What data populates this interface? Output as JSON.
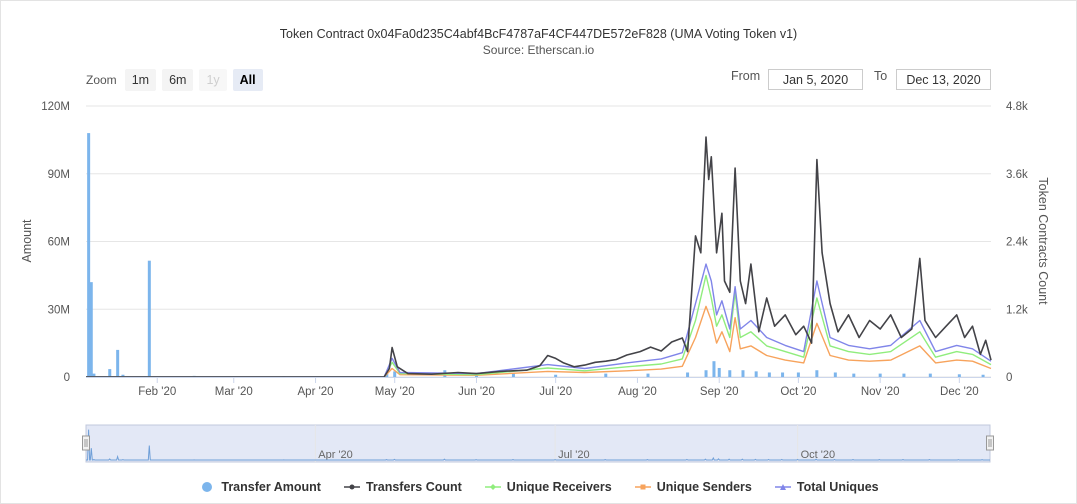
{
  "header": {
    "title": "Token Contract 0x04Fa0d235C4abf4BcF4787aF4CF447DE572eF828 (UMA Voting Token v1)",
    "subtitle": "Source: Etherscan.io"
  },
  "zoom": {
    "label": "Zoom",
    "buttons": [
      {
        "label": "1m",
        "state": "normal"
      },
      {
        "label": "6m",
        "state": "normal"
      },
      {
        "label": "1y",
        "state": "disabled"
      },
      {
        "label": "All",
        "state": "active"
      }
    ]
  },
  "range": {
    "from_label": "From",
    "from_value": "Jan 5, 2020",
    "to_label": "To",
    "to_value": "Dec 13, 2020"
  },
  "chart_data": {
    "type": "line",
    "title": "Token Contract 0x04Fa0d235C4abf4BcF4787aF4CF447DE572eF828 (UMA Voting Token v1)",
    "subtitle": "Source: Etherscan.io",
    "ylabel_left": "Amount",
    "ylabel_right": "Token Contracts Count",
    "x_range": [
      "2020-01-05",
      "2020-12-13"
    ],
    "x_ticks": [
      "Feb '20",
      "Mar '20",
      "Apr '20",
      "May '20",
      "Jun '20",
      "Jul '20",
      "Aug '20",
      "Sep '20",
      "Oct '20",
      "Nov '20",
      "Dec '20"
    ],
    "y_left": {
      "min": 0,
      "max": 120000000,
      "ticks": [
        "0",
        "30M",
        "60M",
        "90M",
        "120M"
      ]
    },
    "y_right": {
      "min": 0,
      "max": 4800,
      "ticks": [
        "0",
        "1.2k",
        "2.4k",
        "3.6k",
        "4.8k"
      ]
    },
    "grid": true,
    "legend_position": "bottom",
    "colors": {
      "transfer_amount": "#7cb5ec",
      "transfers_count": "#434348",
      "unique_receivers": "#90ed7d",
      "unique_senders": "#f7a35c",
      "total_uniques": "#8085e9"
    },
    "series": [
      {
        "name": "Transfer Amount",
        "axis": "left",
        "kind": "column",
        "points": [
          [
            "2020-01-06",
            108000000
          ],
          [
            "2020-01-07",
            42000000
          ],
          [
            "2020-01-08",
            1500000
          ],
          [
            "2020-01-14",
            3500000
          ],
          [
            "2020-01-17",
            12000000
          ],
          [
            "2020-01-19",
            1000000
          ],
          [
            "2020-01-29",
            51500000
          ],
          [
            "2020-02-15",
            500000
          ],
          [
            "2020-03-20",
            400000
          ],
          [
            "2020-04-28",
            1500000
          ],
          [
            "2020-05-01",
            2500000
          ],
          [
            "2020-05-20",
            3000000
          ],
          [
            "2020-06-01",
            1000000
          ],
          [
            "2020-06-15",
            1500000
          ],
          [
            "2020-07-01",
            1000000
          ],
          [
            "2020-07-20",
            1500000
          ],
          [
            "2020-08-05",
            1500000
          ],
          [
            "2020-08-20",
            2000000
          ],
          [
            "2020-08-27",
            3000000
          ],
          [
            "2020-08-30",
            7000000
          ],
          [
            "2020-09-01",
            4000000
          ],
          [
            "2020-09-05",
            3000000
          ],
          [
            "2020-09-10",
            3000000
          ],
          [
            "2020-09-15",
            2500000
          ],
          [
            "2020-09-20",
            2000000
          ],
          [
            "2020-09-25",
            2000000
          ],
          [
            "2020-10-01",
            2000000
          ],
          [
            "2020-10-08",
            3000000
          ],
          [
            "2020-10-15",
            2000000
          ],
          [
            "2020-10-22",
            1500000
          ],
          [
            "2020-11-01",
            1500000
          ],
          [
            "2020-11-10",
            1500000
          ],
          [
            "2020-11-20",
            1500000
          ],
          [
            "2020-12-01",
            1200000
          ],
          [
            "2020-12-10",
            1000000
          ]
        ]
      },
      {
        "name": "Transfers Count",
        "axis": "right",
        "points": [
          [
            "2020-01-05",
            0
          ],
          [
            "2020-04-27",
            0
          ],
          [
            "2020-04-29",
            150
          ],
          [
            "2020-04-30",
            520
          ],
          [
            "2020-05-02",
            180
          ],
          [
            "2020-05-06",
            60
          ],
          [
            "2020-05-15",
            50
          ],
          [
            "2020-05-25",
            80
          ],
          [
            "2020-06-01",
            60
          ],
          [
            "2020-06-10",
            100
          ],
          [
            "2020-06-20",
            120
          ],
          [
            "2020-06-25",
            200
          ],
          [
            "2020-06-28",
            380
          ],
          [
            "2020-07-01",
            330
          ],
          [
            "2020-07-04",
            250
          ],
          [
            "2020-07-08",
            180
          ],
          [
            "2020-07-12",
            210
          ],
          [
            "2020-07-16",
            260
          ],
          [
            "2020-07-20",
            280
          ],
          [
            "2020-07-24",
            310
          ],
          [
            "2020-07-28",
            390
          ],
          [
            "2020-08-02",
            450
          ],
          [
            "2020-08-06",
            530
          ],
          [
            "2020-08-10",
            460
          ],
          [
            "2020-08-14",
            620
          ],
          [
            "2020-08-18",
            690
          ],
          [
            "2020-08-20",
            450
          ],
          [
            "2020-08-23",
            2500
          ],
          [
            "2020-08-25",
            2200
          ],
          [
            "2020-08-27",
            4250
          ],
          [
            "2020-08-28",
            3500
          ],
          [
            "2020-08-29",
            3900
          ],
          [
            "2020-08-31",
            2200
          ],
          [
            "2020-09-02",
            2900
          ],
          [
            "2020-09-03",
            1700
          ],
          [
            "2020-09-05",
            1500
          ],
          [
            "2020-09-07",
            3700
          ],
          [
            "2020-09-09",
            1700
          ],
          [
            "2020-09-11",
            1300
          ],
          [
            "2020-09-13",
            2000
          ],
          [
            "2020-09-16",
            800
          ],
          [
            "2020-09-19",
            1400
          ],
          [
            "2020-09-22",
            900
          ],
          [
            "2020-09-26",
            1100
          ],
          [
            "2020-09-30",
            750
          ],
          [
            "2020-10-03",
            900
          ],
          [
            "2020-10-06",
            600
          ],
          [
            "2020-10-08",
            3850
          ],
          [
            "2020-10-10",
            2200
          ],
          [
            "2020-10-13",
            1300
          ],
          [
            "2020-10-16",
            800
          ],
          [
            "2020-10-20",
            1100
          ],
          [
            "2020-10-24",
            700
          ],
          [
            "2020-10-28",
            1000
          ],
          [
            "2020-11-01",
            850
          ],
          [
            "2020-11-05",
            1100
          ],
          [
            "2020-11-09",
            700
          ],
          [
            "2020-11-13",
            850
          ],
          [
            "2020-11-16",
            2100
          ],
          [
            "2020-11-18",
            1000
          ],
          [
            "2020-11-22",
            700
          ],
          [
            "2020-11-26",
            900
          ],
          [
            "2020-11-30",
            1100
          ],
          [
            "2020-12-03",
            700
          ],
          [
            "2020-12-06",
            900
          ],
          [
            "2020-12-09",
            400
          ],
          [
            "2020-12-11",
            650
          ],
          [
            "2020-12-13",
            300
          ]
        ]
      },
      {
        "name": "Unique Receivers",
        "axis": "right",
        "points": [
          [
            "2020-01-05",
            0
          ],
          [
            "2020-04-27",
            0
          ],
          [
            "2020-04-30",
            260
          ],
          [
            "2020-05-03",
            60
          ],
          [
            "2020-06-01",
            40
          ],
          [
            "2020-06-28",
            160
          ],
          [
            "2020-07-12",
            110
          ],
          [
            "2020-07-28",
            180
          ],
          [
            "2020-08-10",
            230
          ],
          [
            "2020-08-18",
            320
          ],
          [
            "2020-08-23",
            1000
          ],
          [
            "2020-08-27",
            1800
          ],
          [
            "2020-08-29",
            1400
          ],
          [
            "2020-08-31",
            900
          ],
          [
            "2020-09-02",
            1100
          ],
          [
            "2020-09-05",
            700
          ],
          [
            "2020-09-07",
            1500
          ],
          [
            "2020-09-09",
            700
          ],
          [
            "2020-09-13",
            800
          ],
          [
            "2020-09-19",
            550
          ],
          [
            "2020-09-26",
            450
          ],
          [
            "2020-10-03",
            350
          ],
          [
            "2020-10-08",
            1400
          ],
          [
            "2020-10-13",
            550
          ],
          [
            "2020-10-20",
            450
          ],
          [
            "2020-10-28",
            400
          ],
          [
            "2020-11-05",
            450
          ],
          [
            "2020-11-16",
            800
          ],
          [
            "2020-11-22",
            350
          ],
          [
            "2020-11-30",
            450
          ],
          [
            "2020-12-06",
            400
          ],
          [
            "2020-12-13",
            220
          ]
        ]
      },
      {
        "name": "Unique Senders",
        "axis": "right",
        "points": [
          [
            "2020-01-05",
            0
          ],
          [
            "2020-04-27",
            0
          ],
          [
            "2020-04-30",
            150
          ],
          [
            "2020-05-03",
            40
          ],
          [
            "2020-06-01",
            30
          ],
          [
            "2020-06-28",
            100
          ],
          [
            "2020-07-12",
            80
          ],
          [
            "2020-07-28",
            110
          ],
          [
            "2020-08-10",
            140
          ],
          [
            "2020-08-18",
            190
          ],
          [
            "2020-08-23",
            700
          ],
          [
            "2020-08-27",
            1250
          ],
          [
            "2020-08-29",
            1000
          ],
          [
            "2020-08-31",
            600
          ],
          [
            "2020-09-02",
            800
          ],
          [
            "2020-09-05",
            450
          ],
          [
            "2020-09-07",
            1050
          ],
          [
            "2020-09-09",
            500
          ],
          [
            "2020-09-13",
            550
          ],
          [
            "2020-09-19",
            380
          ],
          [
            "2020-09-26",
            300
          ],
          [
            "2020-10-03",
            250
          ],
          [
            "2020-10-08",
            950
          ],
          [
            "2020-10-13",
            380
          ],
          [
            "2020-10-20",
            300
          ],
          [
            "2020-10-28",
            280
          ],
          [
            "2020-11-05",
            300
          ],
          [
            "2020-11-16",
            550
          ],
          [
            "2020-11-22",
            250
          ],
          [
            "2020-11-30",
            300
          ],
          [
            "2020-12-06",
            280
          ],
          [
            "2020-12-13",
            150
          ]
        ]
      },
      {
        "name": "Total Uniques",
        "axis": "right",
        "points": [
          [
            "2020-01-05",
            0
          ],
          [
            "2020-04-27",
            0
          ],
          [
            "2020-04-30",
            330
          ],
          [
            "2020-05-03",
            80
          ],
          [
            "2020-06-01",
            60
          ],
          [
            "2020-06-28",
            220
          ],
          [
            "2020-07-12",
            150
          ],
          [
            "2020-07-28",
            250
          ],
          [
            "2020-08-10",
            320
          ],
          [
            "2020-08-18",
            430
          ],
          [
            "2020-08-23",
            1300
          ],
          [
            "2020-08-27",
            2000
          ],
          [
            "2020-08-29",
            1700
          ],
          [
            "2020-08-31",
            1100
          ],
          [
            "2020-09-02",
            1350
          ],
          [
            "2020-09-05",
            850
          ],
          [
            "2020-09-07",
            1600
          ],
          [
            "2020-09-09",
            850
          ],
          [
            "2020-09-13",
            1000
          ],
          [
            "2020-09-19",
            700
          ],
          [
            "2020-09-26",
            560
          ],
          [
            "2020-10-03",
            450
          ],
          [
            "2020-10-08",
            1700
          ],
          [
            "2020-10-13",
            700
          ],
          [
            "2020-10-20",
            560
          ],
          [
            "2020-10-28",
            500
          ],
          [
            "2020-11-05",
            560
          ],
          [
            "2020-11-16",
            1000
          ],
          [
            "2020-11-22",
            450
          ],
          [
            "2020-11-30",
            560
          ],
          [
            "2020-12-06",
            500
          ],
          [
            "2020-12-13",
            280
          ]
        ]
      }
    ]
  },
  "navigator": {
    "labels": [
      "Apr '20",
      "Jul '20",
      "Oct '20"
    ],
    "label_dates": [
      "2020-04-01",
      "2020-07-01",
      "2020-10-01"
    ]
  },
  "legend": [
    {
      "label": "Transfer Amount",
      "marker": "circle",
      "color": "#7cb5ec"
    },
    {
      "label": "Transfers Count",
      "marker": "line-dot",
      "color": "#434348"
    },
    {
      "label": "Unique Receivers",
      "marker": "line-diamond",
      "color": "#90ed7d"
    },
    {
      "label": "Unique Senders",
      "marker": "line-square",
      "color": "#f7a35c"
    },
    {
      "label": "Total Uniques",
      "marker": "line-triangle",
      "color": "#8085e9"
    }
  ]
}
